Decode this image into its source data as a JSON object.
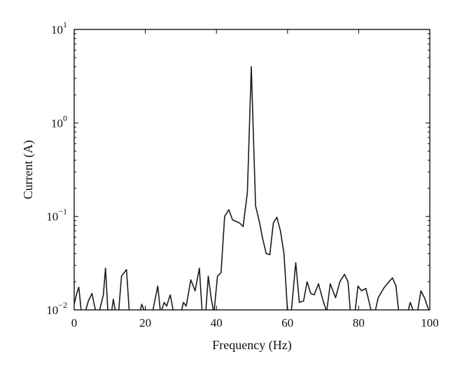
{
  "chart_data": {
    "type": "line",
    "xlabel": "Frequency (Hz)",
    "ylabel": "Current (A)",
    "xlim": [
      0,
      100
    ],
    "ylim": [
      0.01,
      10
    ],
    "yscale": "log",
    "grid": false,
    "x_ticks": [
      {
        "value": 0,
        "label": "0"
      },
      {
        "value": 20,
        "label": "20"
      },
      {
        "value": 40,
        "label": "40"
      },
      {
        "value": 60,
        "label": "60"
      },
      {
        "value": 80,
        "label": "80"
      },
      {
        "value": 100,
        "label": "100"
      }
    ],
    "y_ticks": [
      {
        "value": 0.01,
        "base": "10",
        "exp": "−2"
      },
      {
        "value": 0.1,
        "base": "10",
        "exp": "−1"
      },
      {
        "value": 1,
        "base": "10",
        "exp": "0"
      },
      {
        "value": 10,
        "base": "10",
        "exp": "1"
      }
    ],
    "series": [
      {
        "values": [
          [
            0,
            0.0115
          ],
          [
            0.7,
            0.015
          ],
          [
            1.3,
            0.0175
          ],
          [
            2,
            0.0095
          ],
          [
            3,
            0.0092
          ],
          [
            4,
            0.0125
          ],
          [
            5,
            0.015
          ],
          [
            6,
            0.0098
          ],
          [
            7,
            0.0095
          ],
          [
            8.2,
            0.0145
          ],
          [
            8.8,
            0.028
          ],
          [
            9.5,
            0.0092
          ],
          [
            10.5,
            0.0095
          ],
          [
            11,
            0.013
          ],
          [
            11.7,
            0.0092
          ],
          [
            12.5,
            0.0096
          ],
          [
            13.3,
            0.023
          ],
          [
            14.7,
            0.027
          ],
          [
            15.5,
            0.0095
          ],
          [
            17,
            0.0092
          ],
          [
            18.5,
            0.0095
          ],
          [
            19,
            0.0115
          ],
          [
            20,
            0.0092
          ],
          [
            21,
            0.0096
          ],
          [
            22,
            0.0094
          ],
          [
            23.5,
            0.018
          ],
          [
            24.3,
            0.0092
          ],
          [
            25.3,
            0.012
          ],
          [
            26,
            0.011
          ],
          [
            27,
            0.0145
          ],
          [
            28,
            0.0092
          ],
          [
            29,
            0.0096
          ],
          [
            30,
            0.0092
          ],
          [
            30.7,
            0.012
          ],
          [
            31.5,
            0.011
          ],
          [
            32.8,
            0.021
          ],
          [
            34,
            0.016
          ],
          [
            35.2,
            0.028
          ],
          [
            36,
            0.0092
          ],
          [
            37,
            0.0096
          ],
          [
            37.7,
            0.023
          ],
          [
            38.5,
            0.0135
          ],
          [
            39.3,
            0.0092
          ],
          [
            40.3,
            0.023
          ],
          [
            41.3,
            0.025
          ],
          [
            42.3,
            0.1
          ],
          [
            43.5,
            0.118
          ],
          [
            44.5,
            0.092
          ],
          [
            46.5,
            0.085
          ],
          [
            47.5,
            0.078
          ],
          [
            48.7,
            0.18
          ],
          [
            49.8,
            4.0
          ],
          [
            51,
            0.13
          ],
          [
            52,
            0.09
          ],
          [
            53,
            0.058
          ],
          [
            54,
            0.04
          ],
          [
            55,
            0.039
          ],
          [
            56,
            0.085
          ],
          [
            57,
            0.098
          ],
          [
            58,
            0.07
          ],
          [
            59,
            0.04
          ],
          [
            60,
            0.0095
          ],
          [
            61,
            0.0092
          ],
          [
            62.3,
            0.032
          ],
          [
            63.3,
            0.012
          ],
          [
            64.5,
            0.0125
          ],
          [
            65.5,
            0.02
          ],
          [
            66.5,
            0.015
          ],
          [
            67.5,
            0.0145
          ],
          [
            68.7,
            0.019
          ],
          [
            70,
            0.0125
          ],
          [
            71,
            0.0096
          ],
          [
            72,
            0.019
          ],
          [
            73.5,
            0.0135
          ],
          [
            74.7,
            0.02
          ],
          [
            76,
            0.024
          ],
          [
            77,
            0.02
          ],
          [
            77.7,
            0.0092
          ],
          [
            79,
            0.0096
          ],
          [
            79.8,
            0.018
          ],
          [
            80.8,
            0.016
          ],
          [
            82,
            0.017
          ],
          [
            83.7,
            0.0092
          ],
          [
            84.5,
            0.0092
          ],
          [
            85.5,
            0.0135
          ],
          [
            87,
            0.017
          ],
          [
            88.5,
            0.02
          ],
          [
            89.5,
            0.022
          ],
          [
            90.5,
            0.018
          ],
          [
            91.3,
            0.0092
          ],
          [
            92.5,
            0.0094
          ],
          [
            93.7,
            0.0092
          ],
          [
            94.5,
            0.012
          ],
          [
            95.5,
            0.0095
          ],
          [
            96.5,
            0.0092
          ],
          [
            97.5,
            0.016
          ],
          [
            98.5,
            0.0135
          ],
          [
            100,
            0.0092
          ]
        ]
      }
    ]
  }
}
